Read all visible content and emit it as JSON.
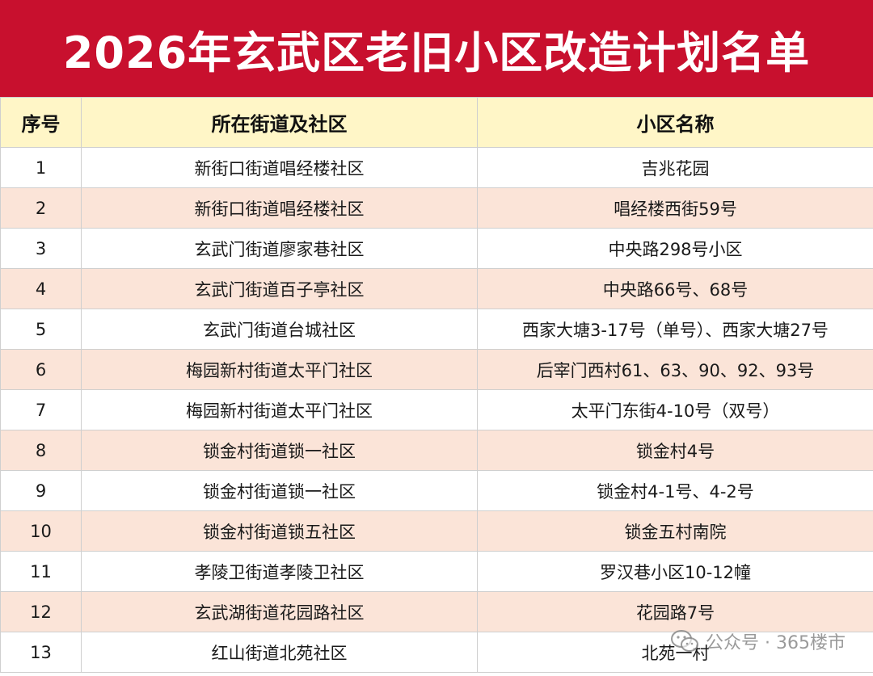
{
  "title": "2026年玄武区老旧小区改造计划名单",
  "headers": {
    "seq": "序号",
    "street": "所在街道及社区",
    "name": "小区名称"
  },
  "rows": [
    {
      "seq": "1",
      "street": "新街口街道唱经楼社区",
      "name": "吉兆花园"
    },
    {
      "seq": "2",
      "street": "新街口街道唱经楼社区",
      "name": "唱经楼西街59号"
    },
    {
      "seq": "3",
      "street": "玄武门街道廖家巷社区",
      "name": "中央路298号小区"
    },
    {
      "seq": "4",
      "street": "玄武门街道百子亭社区",
      "name": "中央路66号、68号"
    },
    {
      "seq": "5",
      "street": "玄武门街道台城社区",
      "name": "西家大塘3-17号（单号）、西家大塘27号"
    },
    {
      "seq": "6",
      "street": "梅园新村街道太平门社区",
      "name": "后宰门西村61、63、90、92、93号"
    },
    {
      "seq": "7",
      "street": "梅园新村街道太平门社区",
      "name": "太平门东街4-10号（双号）"
    },
    {
      "seq": "8",
      "street": "锁金村街道锁一社区",
      "name": "锁金村4号"
    },
    {
      "seq": "9",
      "street": "锁金村街道锁一社区",
      "name": "锁金村4-1号、4-2号"
    },
    {
      "seq": "10",
      "street": "锁金村街道锁五社区",
      "name": "锁金五村南院"
    },
    {
      "seq": "11",
      "street": "孝陵卫街道孝陵卫社区",
      "name": "罗汉巷小区10-12幢"
    },
    {
      "seq": "12",
      "street": "玄武湖街道花园路社区",
      "name": "花园路7号"
    },
    {
      "seq": "13",
      "street": "红山街道北苑社区",
      "name": "北苑一村"
    }
  ],
  "watermark": {
    "text": "公众号 · 365楼市",
    "icon": "wechat-icon"
  },
  "colors": {
    "title_bg": "#c8102e",
    "header_bg": "#fff6c7",
    "stripe_bg": "#fbe4d8"
  }
}
